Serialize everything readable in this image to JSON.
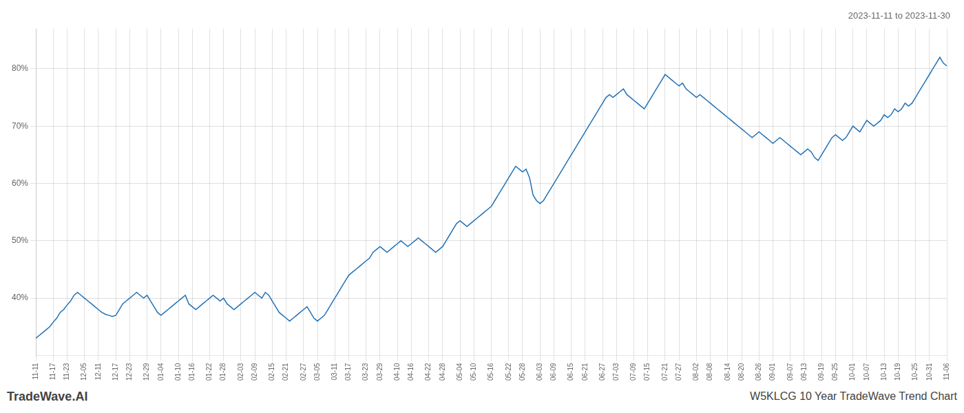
{
  "chart_data": {
    "type": "line",
    "title": "2023-11-11 to 2023-11-30",
    "annotations": [
      "TradeWave.AI",
      "W5KLCG 10 Year TradeWave Trend Chart"
    ],
    "categories": [
      "11-11",
      null,
      null,
      null,
      null,
      "11-17",
      null,
      null,
      null,
      "11-23",
      null,
      null,
      null,
      null,
      "12-05",
      null,
      null,
      null,
      "12-11",
      null,
      null,
      null,
      null,
      "12-17",
      null,
      null,
      null,
      "12-23",
      null,
      null,
      null,
      null,
      "12-29",
      null,
      null,
      null,
      "01-04",
      null,
      null,
      null,
      null,
      "01-10",
      null,
      null,
      null,
      "01-16",
      null,
      null,
      null,
      null,
      "01-22",
      null,
      null,
      null,
      "01-28",
      null,
      null,
      null,
      null,
      "02-03",
      null,
      null,
      null,
      "02-09",
      null,
      null,
      null,
      null,
      "02-15",
      null,
      null,
      null,
      "02-21",
      null,
      null,
      null,
      null,
      "02-27",
      null,
      null,
      null,
      "03-05",
      null,
      null,
      null,
      null,
      "03-11",
      null,
      null,
      null,
      "03-17",
      null,
      null,
      null,
      null,
      "03-23",
      null,
      null,
      null,
      "03-29",
      null,
      null,
      null,
      null,
      "04-10",
      null,
      null,
      null,
      "04-16",
      null,
      null,
      null,
      null,
      "04-22",
      null,
      null,
      null,
      "04-28",
      null,
      null,
      null,
      null,
      "05-04",
      null,
      null,
      null,
      "05-10",
      null,
      null,
      null,
      null,
      "05-16",
      null,
      null,
      null,
      null,
      "05-22",
      null,
      null,
      null,
      "05-28",
      null,
      null,
      null,
      null,
      "06-03",
      null,
      null,
      null,
      "06-09",
      null,
      null,
      null,
      null,
      "06-15",
      null,
      null,
      null,
      "06-21",
      null,
      null,
      null,
      null,
      "06-27",
      null,
      null,
      null,
      "07-03",
      null,
      null,
      null,
      null,
      "07-09",
      null,
      null,
      null,
      "07-15",
      null,
      null,
      null,
      null,
      "07-21",
      null,
      null,
      null,
      "07-27",
      null,
      null,
      null,
      null,
      "08-02",
      null,
      null,
      null,
      "08-08",
      null,
      null,
      null,
      null,
      "08-14",
      null,
      null,
      null,
      "08-20",
      null,
      null,
      null,
      null,
      "08-26",
      null,
      null,
      null,
      "09-01",
      null,
      null,
      null,
      null,
      "09-07",
      null,
      null,
      null,
      "09-13",
      null,
      null,
      null,
      null,
      "09-19",
      null,
      null,
      null,
      "09-25",
      null,
      null,
      null,
      null,
      "10-01",
      null,
      null,
      null,
      "10-07",
      null,
      null,
      null,
      null,
      "10-13",
      null,
      null,
      null,
      "10-19",
      null,
      null,
      null,
      null,
      "10-25",
      null,
      null,
      null,
      "10-31",
      null,
      null,
      null,
      null,
      "11-06"
    ],
    "values": [
      33.0,
      33.5,
      34.0,
      34.5,
      35.0,
      35.8,
      36.5,
      37.5,
      38.0,
      38.8,
      39.5,
      40.5,
      41.0,
      40.5,
      40.0,
      39.5,
      39.0,
      38.5,
      38.0,
      37.5,
      37.2,
      37.0,
      36.8,
      37.0,
      38.0,
      39.0,
      39.5,
      40.0,
      40.5,
      41.0,
      40.5,
      40.0,
      40.5,
      39.5,
      38.5,
      37.5,
      37.0,
      37.5,
      38.0,
      38.5,
      39.0,
      39.5,
      40.0,
      40.5,
      39.0,
      38.5,
      38.0,
      38.5,
      39.0,
      39.5,
      40.0,
      40.5,
      40.0,
      39.5,
      40.0,
      39.0,
      38.5,
      38.0,
      38.5,
      39.0,
      39.5,
      40.0,
      40.5,
      41.0,
      40.5,
      40.0,
      41.0,
      40.5,
      39.5,
      38.5,
      37.5,
      37.0,
      36.5,
      36.0,
      36.5,
      37.0,
      37.5,
      38.0,
      38.5,
      37.5,
      36.5,
      36.0,
      36.5,
      37.0,
      38.0,
      39.0,
      40.0,
      41.0,
      42.0,
      43.0,
      44.0,
      44.5,
      45.0,
      45.5,
      46.0,
      46.5,
      47.0,
      48.0,
      48.5,
      49.0,
      48.5,
      48.0,
      48.5,
      49.0,
      49.5,
      50.0,
      49.5,
      49.0,
      49.5,
      50.0,
      50.5,
      50.0,
      49.5,
      49.0,
      48.5,
      48.0,
      48.5,
      49.0,
      50.0,
      51.0,
      52.0,
      53.0,
      53.5,
      53.0,
      52.5,
      53.0,
      53.5,
      54.0,
      54.5,
      55.0,
      55.5,
      56.0,
      57.0,
      58.0,
      59.0,
      60.0,
      61.0,
      62.0,
      63.0,
      62.5,
      62.0,
      62.5,
      61.0,
      58.0,
      57.0,
      56.5,
      57.0,
      58.0,
      59.0,
      60.0,
      61.0,
      62.0,
      63.0,
      64.0,
      65.0,
      66.0,
      67.0,
      68.0,
      69.0,
      70.0,
      71.0,
      72.0,
      73.0,
      74.0,
      75.0,
      75.5,
      75.0,
      75.5,
      76.0,
      76.5,
      75.5,
      75.0,
      74.5,
      74.0,
      73.5,
      73.0,
      74.0,
      75.0,
      76.0,
      77.0,
      78.0,
      79.0,
      78.5,
      78.0,
      77.5,
      77.0,
      77.5,
      76.5,
      76.0,
      75.5,
      75.0,
      75.5,
      75.0,
      74.5,
      74.0,
      73.5,
      73.0,
      72.5,
      72.0,
      71.5,
      71.0,
      70.5,
      70.0,
      69.5,
      69.0,
      68.5,
      68.0,
      68.5,
      69.0,
      68.5,
      68.0,
      67.5,
      67.0,
      67.5,
      68.0,
      67.5,
      67.0,
      66.5,
      66.0,
      65.5,
      65.0,
      65.5,
      66.0,
      65.5,
      64.5,
      64.0,
      65.0,
      66.0,
      67.0,
      68.0,
      68.5,
      68.0,
      67.5,
      68.0,
      69.0,
      70.0,
      69.5,
      69.0,
      70.0,
      71.0,
      70.5,
      70.0,
      70.5,
      71.0,
      72.0,
      71.5,
      72.0,
      73.0,
      72.5,
      73.0,
      74.0,
      73.5,
      74.0,
      75.0,
      76.0,
      77.0,
      78.0,
      79.0,
      80.0,
      81.0,
      82.0,
      81.0,
      80.5
    ],
    "color": "#2070b4",
    "ylim": [
      30,
      87
    ],
    "yticks": [
      {
        "value": 40,
        "label": "40%"
      },
      {
        "value": 50,
        "label": "50%"
      },
      {
        "value": 60,
        "label": "60%"
      },
      {
        "value": 70,
        "label": "70%"
      },
      {
        "value": 80,
        "label": "80%"
      }
    ],
    "grid": true
  }
}
